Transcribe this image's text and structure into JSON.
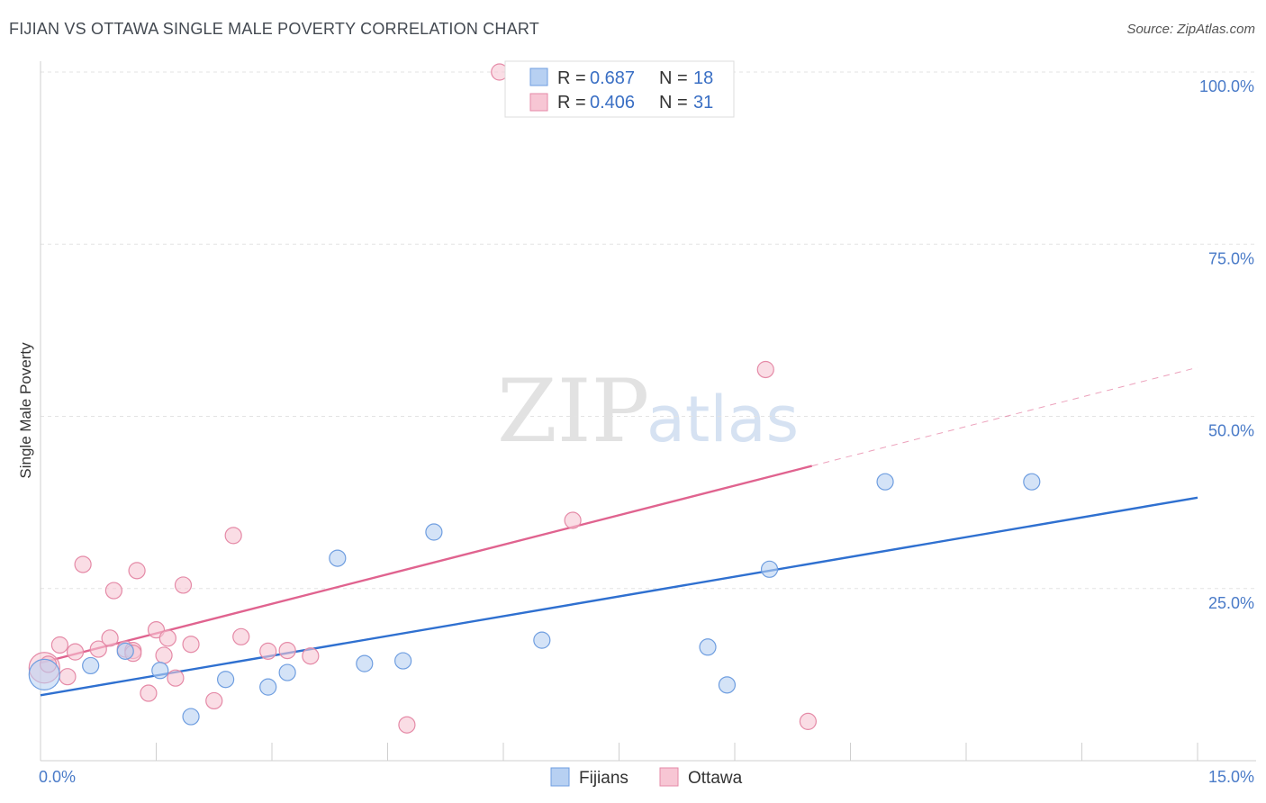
{
  "header": {
    "title": "FIJIAN VS OTTAWA SINGLE MALE POVERTY CORRELATION CHART",
    "source": "Source: ZipAtlas.com"
  },
  "watermark": {
    "zip": "ZIP",
    "atlas": "atlas"
  },
  "legend": {
    "rows": [
      {
        "r_label": "R =",
        "r_value": "0.687",
        "n_label": "N =",
        "n_value": "18"
      },
      {
        "r_label": "R =",
        "r_value": "0.406",
        "n_label": "N =",
        "n_value": "31"
      }
    ]
  },
  "bottom_legend": {
    "fijians": "Fijians",
    "ottawa": "Ottawa"
  },
  "colors": {
    "fijians_fill": "#b7d0f2",
    "fijians_stroke": "#6f9ee0",
    "fijians_line": "#2f70d0",
    "ottawa_fill": "#f7c6d4",
    "ottawa_stroke": "#e58aa7",
    "ottawa_line": "#e0638f"
  },
  "chart_data": {
    "type": "scatter",
    "title": "FIJIAN VS OTTAWA SINGLE MALE POVERTY CORRELATION CHART",
    "xlabel": "",
    "ylabel": "Single Male Poverty",
    "xlim": [
      0,
      15
    ],
    "ylim": [
      0,
      100
    ],
    "x_tick_labels": [
      "0.0%",
      "15.0%"
    ],
    "y_ticks": [
      25,
      50,
      75,
      100
    ],
    "y_tick_labels": [
      "25.0%",
      "50.0%",
      "75.0%",
      "100.0%"
    ],
    "series": [
      {
        "name": "Fijians",
        "R": 0.687,
        "N": 18,
        "points": [
          [
            0.05,
            12.5
          ],
          [
            0.65,
            13.8
          ],
          [
            1.1,
            15.9
          ],
          [
            1.55,
            13.1
          ],
          [
            1.95,
            6.4
          ],
          [
            2.4,
            11.8
          ],
          [
            2.95,
            10.7
          ],
          [
            3.2,
            12.8
          ],
          [
            3.85,
            29.4
          ],
          [
            4.2,
            14.1
          ],
          [
            4.7,
            14.5
          ],
          [
            5.1,
            33.2
          ],
          [
            6.5,
            17.5
          ],
          [
            8.65,
            16.5
          ],
          [
            8.9,
            11.0
          ],
          [
            9.45,
            27.8
          ],
          [
            10.95,
            40.5
          ],
          [
            12.85,
            40.5
          ]
        ],
        "trend": {
          "x": [
            0,
            15
          ],
          "y": [
            9.5,
            38.2
          ]
        }
      },
      {
        "name": "Ottawa",
        "R": 0.406,
        "N": 31,
        "points": [
          [
            0.05,
            13.5
          ],
          [
            0.25,
            16.8
          ],
          [
            0.35,
            12.2
          ],
          [
            0.45,
            15.8
          ],
          [
            0.55,
            28.5
          ],
          [
            0.75,
            16.2
          ],
          [
            0.9,
            17.8
          ],
          [
            0.95,
            24.7
          ],
          [
            1.1,
            16.2
          ],
          [
            1.2,
            16.0
          ],
          [
            1.25,
            27.6
          ],
          [
            1.4,
            9.8
          ],
          [
            1.5,
            19.0
          ],
          [
            1.6,
            15.3
          ],
          [
            1.65,
            17.8
          ],
          [
            1.75,
            12.0
          ],
          [
            1.85,
            25.5
          ],
          [
            1.95,
            16.9
          ],
          [
            2.25,
            8.7
          ],
          [
            2.5,
            32.7
          ],
          [
            2.6,
            18.0
          ],
          [
            2.95,
            15.9
          ],
          [
            3.2,
            16.0
          ],
          [
            3.5,
            15.2
          ],
          [
            4.75,
            5.2
          ],
          [
            5.95,
            100.0
          ],
          [
            6.9,
            34.9
          ],
          [
            9.4,
            56.8
          ],
          [
            9.95,
            5.7
          ],
          [
            0.1,
            14.0
          ],
          [
            1.2,
            15.6
          ]
        ],
        "trend": {
          "x": [
            0,
            10
          ],
          "y": [
            14.2,
            42.8
          ]
        },
        "trend_extension": {
          "x": [
            10,
            15
          ],
          "y": [
            42.8,
            57.1
          ]
        }
      }
    ]
  }
}
